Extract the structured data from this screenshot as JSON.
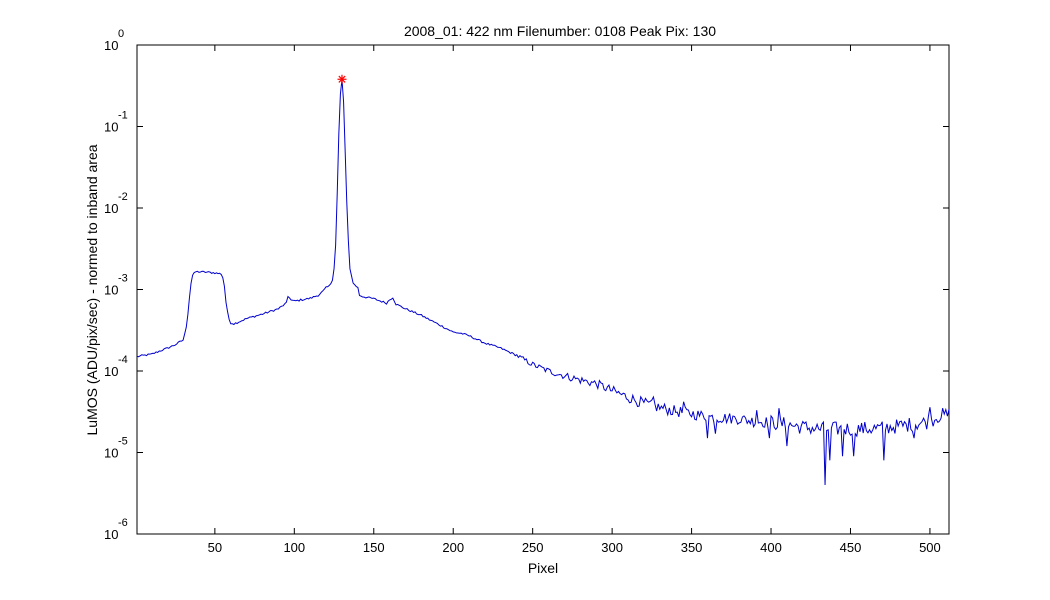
{
  "chart_data": {
    "type": "line",
    "title": "2008_01: 422 nm  Filenumber: 0108 Peak Pix: 130",
    "xlabel": "Pixel",
    "ylabel": "LuMOS (ADU/pix/sec) - normed to inband area",
    "xlim": [
      1,
      512
    ],
    "ylim": [
      1e-06,
      1
    ],
    "yscale": "log",
    "grid": false,
    "x_ticks": [
      50,
      100,
      150,
      200,
      250,
      300,
      350,
      400,
      450,
      500
    ],
    "y_ticks": [
      {
        "value": 1,
        "base": "10",
        "exp": "0"
      },
      {
        "value": 0.1,
        "base": "10",
        "exp": "-1"
      },
      {
        "value": 0.01,
        "base": "10",
        "exp": "-2"
      },
      {
        "value": 0.001,
        "base": "10",
        "exp": "-3"
      },
      {
        "value": 0.0001,
        "base": "10",
        "exp": "-4"
      },
      {
        "value": 1e-05,
        "base": "10",
        "exp": "-5"
      },
      {
        "value": 1e-06,
        "base": "10",
        "exp": "-6"
      }
    ],
    "line_color": "#0000cc",
    "marker_color": "#ff0000",
    "peak": {
      "x": 130,
      "y": 0.38
    },
    "series": [
      {
        "name": "",
        "anchors": [
          [
            1,
            0.00015
          ],
          [
            5,
            0.000155
          ],
          [
            10,
            0.00016
          ],
          [
            15,
            0.000175
          ],
          [
            20,
            0.00019
          ],
          [
            25,
            0.00021
          ],
          [
            30,
            0.00024
          ],
          [
            31,
            0.00028
          ],
          [
            32,
            0.00035
          ],
          [
            33,
            0.0005
          ],
          [
            34,
            0.0008
          ],
          [
            35,
            0.0012
          ],
          [
            36,
            0.0015
          ],
          [
            38,
            0.00165
          ],
          [
            40,
            0.00165
          ],
          [
            45,
            0.00163
          ],
          [
            50,
            0.0016
          ],
          [
            54,
            0.00155
          ],
          [
            55,
            0.0014
          ],
          [
            56,
            0.0011
          ],
          [
            57,
            0.0007
          ],
          [
            58,
            0.00052
          ],
          [
            59,
            0.00043
          ],
          [
            60,
            0.00039
          ],
          [
            62,
            0.00038
          ],
          [
            65,
            0.0004
          ],
          [
            70,
            0.00044
          ],
          [
            80,
            0.0005
          ],
          [
            90,
            0.00058
          ],
          [
            95,
            0.00068
          ],
          [
            96,
            0.00082
          ],
          [
            97,
            0.0008
          ],
          [
            98,
            0.00074
          ],
          [
            100,
            0.00072
          ],
          [
            110,
            0.00078
          ],
          [
            115,
            0.00085
          ],
          [
            118,
            0.00095
          ],
          [
            120,
            0.00105
          ],
          [
            122,
            0.0011
          ],
          [
            124,
            0.0013
          ],
          [
            125,
            0.0018
          ],
          [
            126,
            0.0035
          ],
          [
            127,
            0.015
          ],
          [
            128,
            0.08
          ],
          [
            129,
            0.25
          ],
          [
            130,
            0.38
          ],
          [
            131,
            0.2
          ],
          [
            132,
            0.05
          ],
          [
            133,
            0.012
          ],
          [
            134,
            0.004
          ],
          [
            135,
            0.0018
          ],
          [
            137,
            0.0012
          ],
          [
            140,
            0.00105
          ],
          [
            141,
            0.00085
          ],
          [
            143,
            0.00082
          ],
          [
            150,
            0.00077
          ],
          [
            158,
            0.00068
          ],
          [
            160,
            0.00075
          ],
          [
            162,
            0.0008
          ],
          [
            164,
            0.00066
          ],
          [
            170,
            0.00058
          ],
          [
            180,
            0.00048
          ],
          [
            190,
            0.00038
          ],
          [
            200,
            0.0003
          ],
          [
            205,
            0.00029
          ],
          [
            210,
            0.00027
          ],
          [
            220,
            0.00022
          ],
          [
            230,
            0.00019
          ],
          [
            240,
            0.000155
          ],
          [
            250,
            0.00012
          ],
          [
            260,
            0.0001
          ],
          [
            270,
            8.75e-05
          ],
          [
            280,
            7.75e-05
          ],
          [
            290,
            7e-05
          ],
          [
            300,
            5.75e-05
          ],
          [
            310,
            4.75e-05
          ],
          [
            320,
            4e-05
          ],
          [
            330,
            3.55e-05
          ],
          [
            340,
            3.2e-05
          ],
          [
            350,
            3e-05
          ],
          [
            360,
            2.75e-05
          ],
          [
            370,
            2.65e-05
          ],
          [
            380,
            2.6e-05
          ],
          [
            390,
            2.4e-05
          ],
          [
            400,
            2.35e-05
          ],
          [
            410,
            2.2e-05
          ],
          [
            420,
            2.05e-05
          ],
          [
            430,
            1.95e-05
          ],
          [
            440,
            1.95e-05
          ],
          [
            450,
            1.95e-05
          ],
          [
            460,
            1.95e-05
          ],
          [
            470,
            2e-05
          ],
          [
            480,
            2.1e-05
          ],
          [
            490,
            2.25e-05
          ],
          [
            500,
            2.4e-05
          ],
          [
            505,
            2.8e-05
          ],
          [
            512,
            2.9e-05
          ]
        ],
        "dips": [
          [
            360,
            1.5e-05
          ],
          [
            365,
            1.7e-05
          ],
          [
            399,
            1.5e-05
          ],
          [
            410,
            1.2e-05
          ],
          [
            434,
            4e-06
          ],
          [
            437,
            8e-06
          ],
          [
            445,
            9e-06
          ],
          [
            452,
            9e-06
          ],
          [
            471,
            8e-06
          ],
          [
            490,
            1.5e-05
          ]
        ],
        "spikes": [
          [
            326,
            4.8e-05
          ],
          [
            345,
            4.2e-05
          ],
          [
            391,
            3.3e-05
          ],
          [
            405,
            3.5e-05
          ],
          [
            500,
            3.6e-05
          ],
          [
            508,
            3.5e-05
          ]
        ]
      }
    ]
  }
}
